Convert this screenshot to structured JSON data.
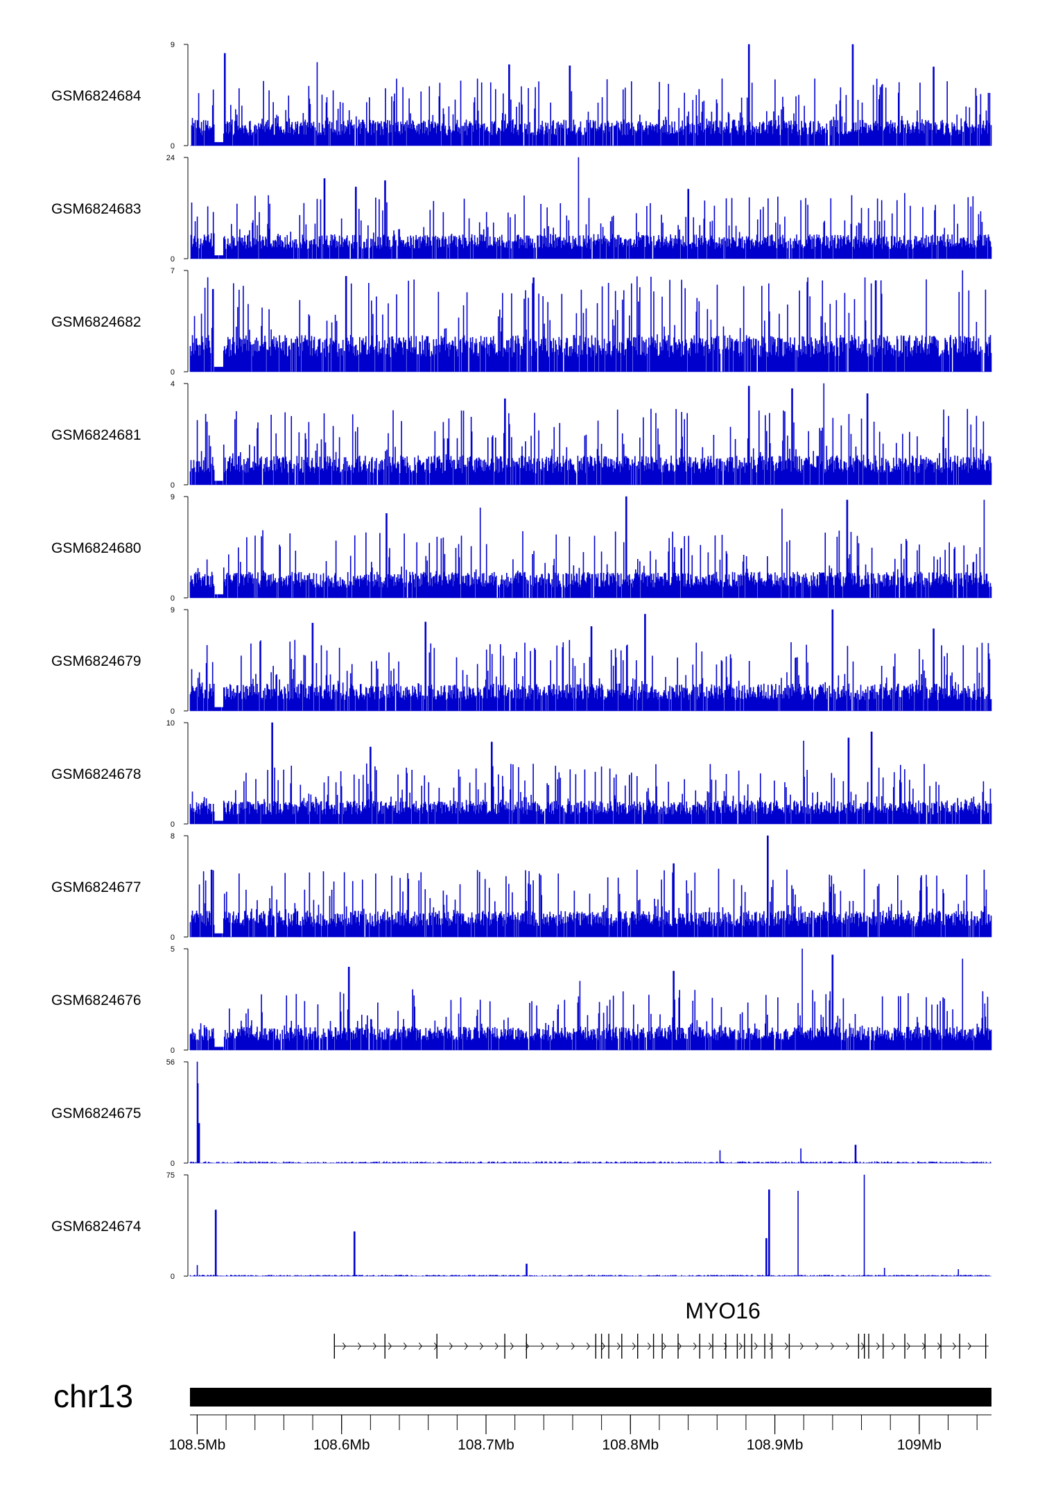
{
  "chart_data": {
    "type": "area",
    "chromosome": "chr13",
    "xlim": [
      108.495,
      109.05
    ],
    "x_unit": "Mb",
    "x_ticks": [
      {
        "value": 108.5,
        "label": "108.5Mb"
      },
      {
        "value": 108.6,
        "label": "108.6Mb"
      },
      {
        "value": 108.7,
        "label": "108.7Mb"
      },
      {
        "value": 108.8,
        "label": "108.8Mb"
      },
      {
        "value": 108.9,
        "label": "108.9Mb"
      },
      {
        "value": 109.0,
        "label": "109Mb"
      }
    ],
    "series_color": "#0000cd",
    "tracks": [
      {
        "name": "GSM6824684",
        "ymax": 9,
        "ymin_label": "0",
        "ymax_label": "9",
        "baseline": 2.0,
        "noise": 0.85,
        "peaks": [
          [
            108.882,
            9
          ],
          [
            108.954,
            9
          ],
          [
            108.519,
            8.2
          ],
          [
            108.583,
            7.4
          ],
          [
            108.716,
            7.2
          ],
          [
            108.758,
            7.1
          ],
          [
            109.01,
            7.0
          ]
        ]
      },
      {
        "name": "GSM6824683",
        "ymax": 24,
        "ymin_label": "0",
        "ymax_label": "24",
        "baseline": 5.0,
        "noise": 0.8,
        "peaks": [
          [
            108.764,
            24
          ],
          [
            108.588,
            19
          ],
          [
            108.63,
            18.5
          ],
          [
            108.99,
            15.5
          ],
          [
            108.61,
            17.0
          ],
          [
            108.84,
            16.5
          ]
        ]
      },
      {
        "name": "GSM6824682",
        "ymax": 7,
        "ymin_label": "0",
        "ymax_label": "7",
        "baseline": 2.2,
        "noise": 0.85,
        "peaks": [
          [
            109.03,
            7
          ],
          [
            108.603,
            6.6
          ],
          [
            108.733,
            6.5
          ],
          [
            108.97,
            6.3
          ],
          [
            108.86,
            6.0
          ],
          [
            108.511,
            5.7
          ]
        ]
      },
      {
        "name": "GSM6824681",
        "ymax": 4,
        "ymin_label": "0",
        "ymax_label": "4",
        "baseline": 1.0,
        "noise": 0.9,
        "peaks": [
          [
            108.934,
            4
          ],
          [
            108.882,
            3.9
          ],
          [
            108.912,
            3.8
          ],
          [
            108.964,
            3.6
          ],
          [
            108.713,
            3.4
          ],
          [
            108.527,
            2.9
          ]
        ]
      },
      {
        "name": "GSM6824680",
        "ymax": 9,
        "ymin_label": "0",
        "ymax_label": "9",
        "baseline": 2.0,
        "noise": 0.85,
        "peaks": [
          [
            108.797,
            9
          ],
          [
            108.95,
            8.7
          ],
          [
            109.045,
            8.7
          ],
          [
            108.905,
            7.9
          ],
          [
            108.696,
            8.0
          ],
          [
            108.631,
            7.5
          ]
        ]
      },
      {
        "name": "GSM6824679",
        "ymax": 9,
        "ymin_label": "0",
        "ymax_label": "9",
        "baseline": 2.1,
        "noise": 0.85,
        "peaks": [
          [
            108.94,
            9
          ],
          [
            108.81,
            8.6
          ],
          [
            108.658,
            7.9
          ],
          [
            108.773,
            7.5
          ],
          [
            109.01,
            7.3
          ],
          [
            108.58,
            7.8
          ]
        ]
      },
      {
        "name": "GSM6824678",
        "ymax": 10,
        "ymin_label": "0",
        "ymax_label": "10",
        "baseline": 2.0,
        "noise": 0.85,
        "peaks": [
          [
            108.552,
            10
          ],
          [
            108.967,
            9.1
          ],
          [
            108.951,
            8.5
          ],
          [
            108.92,
            8.2
          ],
          [
            108.704,
            8.1
          ],
          [
            108.62,
            7.6
          ]
        ]
      },
      {
        "name": "GSM6824677",
        "ymax": 8,
        "ymin_label": "0",
        "ymax_label": "8",
        "baseline": 1.8,
        "noise": 0.9,
        "peaks": [
          [
            108.895,
            8
          ],
          [
            108.83,
            5.8
          ],
          [
            109.045,
            5.3
          ],
          [
            108.51,
            5.3
          ],
          [
            108.655,
            5.1
          ],
          [
            108.75,
            5.0
          ]
        ]
      },
      {
        "name": "GSM6824676",
        "ymax": 5,
        "ymin_label": "0",
        "ymax_label": "5",
        "baseline": 1.0,
        "noise": 0.9,
        "peaks": [
          [
            108.919,
            5
          ],
          [
            108.94,
            4.7
          ],
          [
            109.03,
            4.5
          ],
          [
            108.605,
            4.1
          ],
          [
            108.83,
            3.9
          ],
          [
            108.765,
            3.4
          ]
        ]
      },
      {
        "name": "GSM6824675",
        "ymax": 56,
        "ymin_label": "0",
        "ymax_label": "56",
        "baseline": 0.5,
        "noise": 0.6,
        "peaks": [
          [
            108.5,
            56
          ],
          [
            108.5005,
            44
          ],
          [
            108.5012,
            22
          ],
          [
            108.918,
            8
          ],
          [
            108.956,
            10
          ],
          [
            108.862,
            7
          ]
        ]
      },
      {
        "name": "GSM6824674",
        "ymax": 75,
        "ymin_label": "0",
        "ymax_label": "75",
        "baseline": 0.5,
        "noise": 0.6,
        "peaks": [
          [
            108.962,
            75
          ],
          [
            108.896,
            64
          ],
          [
            108.916,
            63
          ],
          [
            108.513,
            49
          ],
          [
            108.609,
            33
          ],
          [
            108.894,
            28
          ],
          [
            108.5,
            8
          ],
          [
            108.728,
            9
          ],
          [
            108.976,
            6
          ],
          [
            109.027,
            5
          ]
        ]
      }
    ],
    "gene": {
      "name": "MYO16",
      "start": 108.595,
      "end": 109.048,
      "strand": "+",
      "exons": [
        108.595,
        108.63,
        108.666,
        108.713,
        108.728,
        108.776,
        108.78,
        108.785,
        108.794,
        108.805,
        108.816,
        108.822,
        108.833,
        108.848,
        108.857,
        108.866,
        108.874,
        108.879,
        108.884,
        108.893,
        108.898,
        108.91,
        108.958,
        108.962,
        108.965,
        108.975,
        108.99,
        109.004,
        109.015,
        109.028,
        109.046
      ]
    }
  }
}
